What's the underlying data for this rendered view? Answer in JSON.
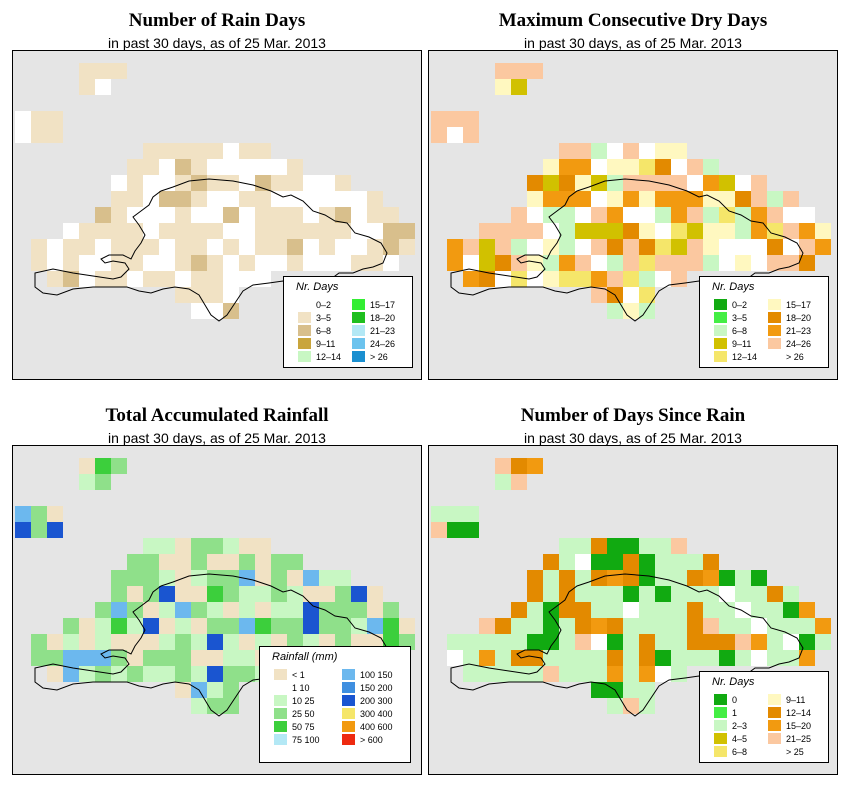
{
  "panels": [
    {
      "title": "Number of Rain Days",
      "subtitle": "in past 30 days, as of  25 Mar. 2013",
      "legend_title": "Nr. Days",
      "legend_items": [
        {
          "label": "0–2",
          "color": "#ffffff"
        },
        {
          "label": "3–5",
          "color": "#f1e2c4"
        },
        {
          "label": "6–8",
          "color": "#d8bf8c"
        },
        {
          "label": "9–11",
          "color": "#c9a53c"
        },
        {
          "label": "12–14",
          "color": "#c8f7c3"
        },
        {
          "label": "15–17",
          "color": "#33ee33"
        },
        {
          "label": "18–20",
          "color": "#1fbf1f"
        },
        {
          "label": "21–23",
          "color": "#b3e8f5"
        },
        {
          "label": "24–26",
          "color": "#6cc3ee"
        },
        {
          "label": "> 26",
          "color": "#1a8fd0"
        }
      ]
    },
    {
      "title": "Maximum Consecutive Dry Days",
      "subtitle": "in past 30 days, as of  25 Mar. 2013",
      "legend_title": "Nr. Days",
      "legend_items": [
        {
          "label": "0–2",
          "color": "#11aa11"
        },
        {
          "label": "3–5",
          "color": "#44ee44"
        },
        {
          "label": "6–8",
          "color": "#c8f7c3"
        },
        {
          "label": "9–11",
          "color": "#d1c100"
        },
        {
          "label": "12–14",
          "color": "#f5e66a"
        },
        {
          "label": "15–17",
          "color": "#fff8c0"
        },
        {
          "label": "18–20",
          "color": "#e38a00"
        },
        {
          "label": "21–23",
          "color": "#f29a10"
        },
        {
          "label": "24–26",
          "color": "#fbc8a0"
        },
        {
          "label": "> 26",
          "color": "#ffffff"
        }
      ]
    },
    {
      "title": "Total Accumulated Rainfall",
      "subtitle": "in past 30 days, as of  25 Mar. 2013",
      "legend_title": "Rainfall (mm)",
      "legend_items": [
        {
          "label": "< 1",
          "color": "#f1e2c4"
        },
        {
          "label": "1    10",
          "color": "#ffffff"
        },
        {
          "label": "10    25",
          "color": "#c8f7c3"
        },
        {
          "label": "25    50",
          "color": "#8fe08a"
        },
        {
          "label": "50    75",
          "color": "#3ccf3c"
        },
        {
          "label": "75   100",
          "color": "#b3e8f5"
        },
        {
          "label": "100   150",
          "color": "#6cb8ee"
        },
        {
          "label": "150   200",
          "color": "#3f8fe0"
        },
        {
          "label": "200   300",
          "color": "#1a55d0"
        },
        {
          "label": "300   400",
          "color": "#f5e66a"
        },
        {
          "label": "400   600",
          "color": "#f29a10"
        },
        {
          "label": "> 600",
          "color": "#ee2a10"
        }
      ]
    },
    {
      "title": "Number of Days Since Rain",
      "subtitle": "in past 30 days, as of  25 Mar. 2013",
      "legend_title": "Nr. Days",
      "legend_items": [
        {
          "label": "0",
          "color": "#11aa11"
        },
        {
          "label": "1",
          "color": "#44ee44"
        },
        {
          "label": "2–3",
          "color": "#c8f7c3"
        },
        {
          "label": "4–5",
          "color": "#d1c100"
        },
        {
          "label": "6–8",
          "color": "#f5e66a"
        },
        {
          "label": "9–11",
          "color": "#fff8c0"
        },
        {
          "label": "12–14",
          "color": "#e38a00"
        },
        {
          "label": "15–20",
          "color": "#f29a10"
        },
        {
          "label": "21–25",
          "color": "#fbc8a0"
        },
        {
          "label": "> 25",
          "color": "#ffffff"
        }
      ]
    }
  ]
}
